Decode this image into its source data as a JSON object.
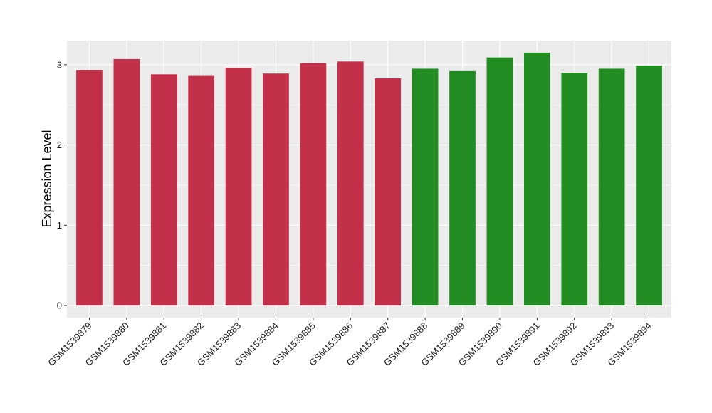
{
  "chart_data": {
    "type": "bar",
    "title": "",
    "xlabel": "",
    "ylabel": "Expression Level",
    "ylim": [
      -0.15,
      3.3
    ],
    "yticks": [
      0,
      1,
      2,
      3
    ],
    "grid": true,
    "legend": "none",
    "categories": [
      "GSM1539879",
      "GSM1539880",
      "GSM1539881",
      "GSM1539882",
      "GSM1539883",
      "GSM1539884",
      "GSM1539885",
      "GSM1539886",
      "GSM1539887",
      "GSM1539888",
      "GSM1539889",
      "GSM1539890",
      "GSM1539891",
      "GSM1539892",
      "GSM1539893",
      "GSM1539894"
    ],
    "values": [
      2.93,
      3.07,
      2.88,
      2.86,
      2.96,
      2.89,
      3.02,
      3.04,
      2.83,
      2.95,
      2.92,
      3.09,
      3.15,
      2.9,
      2.95,
      2.99
    ],
    "groups": [
      0,
      0,
      0,
      0,
      0,
      0,
      0,
      0,
      0,
      1,
      1,
      1,
      1,
      1,
      1,
      1
    ],
    "group_colors": [
      "#C3304A",
      "#228B22"
    ],
    "panel_color": "#EBEBEB",
    "grid_color": "#FFFFFF"
  }
}
